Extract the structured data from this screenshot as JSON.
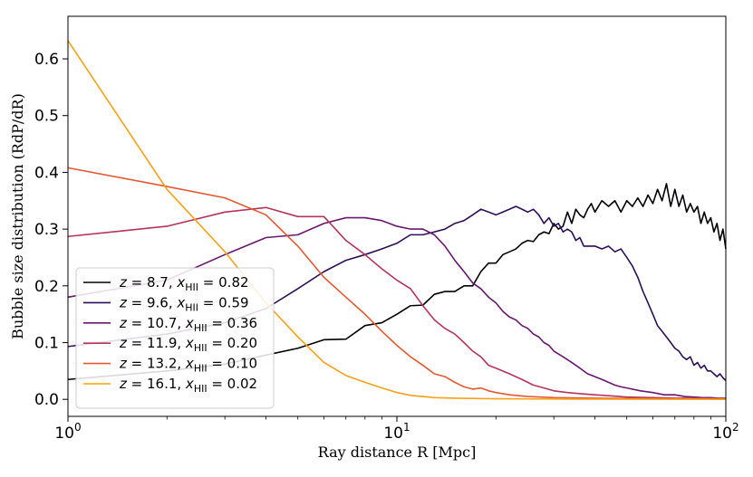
{
  "chart_data": {
    "type": "line",
    "title": "",
    "xlabel": "Ray distance R [Mpc]",
    "ylabel": "Bubble size distribution (RdP/dR)",
    "xscale": "log",
    "xlim": [
      1,
      100
    ],
    "ylim": [
      -0.03,
      0.675
    ],
    "x_ticks": [
      {
        "value": 1,
        "base": "10",
        "exp": "0"
      },
      {
        "value": 10,
        "base": "10",
        "exp": "1"
      },
      {
        "value": 100,
        "base": "10",
        "exp": "2"
      }
    ],
    "y_ticks": [
      {
        "value": 0.0,
        "label": "0.0"
      },
      {
        "value": 0.1,
        "label": "0.1"
      },
      {
        "value": 0.2,
        "label": "0.2"
      },
      {
        "value": 0.3,
        "label": "0.3"
      },
      {
        "value": 0.4,
        "label": "0.4"
      },
      {
        "value": 0.5,
        "label": "0.5"
      },
      {
        "value": 0.6,
        "label": "0.6"
      }
    ],
    "legend_position": "lower-left",
    "series": [
      {
        "name": "z = 8.7, x_HII = 0.82",
        "z": "8.7",
        "xhii": "0.82",
        "color": "#000004",
        "points": [
          [
            1,
            0.035
          ],
          [
            2,
            0.05
          ],
          [
            3,
            0.062
          ],
          [
            4,
            0.078
          ],
          [
            5,
            0.09
          ],
          [
            6,
            0.105
          ],
          [
            7,
            0.106
          ],
          [
            8,
            0.13
          ],
          [
            9,
            0.135
          ],
          [
            10,
            0.15
          ],
          [
            11,
            0.165
          ],
          [
            12,
            0.166
          ],
          [
            13,
            0.185
          ],
          [
            14,
            0.19
          ],
          [
            15,
            0.19
          ],
          [
            16,
            0.2
          ],
          [
            17,
            0.2
          ],
          [
            18,
            0.225
          ],
          [
            19,
            0.24
          ],
          [
            20,
            0.24
          ],
          [
            21,
            0.255
          ],
          [
            22,
            0.26
          ],
          [
            23,
            0.265
          ],
          [
            24,
            0.275
          ],
          [
            25,
            0.28
          ],
          [
            26,
            0.278
          ],
          [
            27,
            0.29
          ],
          [
            28,
            0.295
          ],
          [
            29,
            0.292
          ],
          [
            30,
            0.31
          ],
          [
            31,
            0.3
          ],
          [
            32,
            0.305
          ],
          [
            33,
            0.33
          ],
          [
            34,
            0.31
          ],
          [
            35,
            0.335
          ],
          [
            36,
            0.325
          ],
          [
            37,
            0.32
          ],
          [
            38,
            0.335
          ],
          [
            39,
            0.345
          ],
          [
            40,
            0.33
          ],
          [
            42,
            0.35
          ],
          [
            44,
            0.34
          ],
          [
            46,
            0.35
          ],
          [
            48,
            0.33
          ],
          [
            50,
            0.35
          ],
          [
            52,
            0.34
          ],
          [
            54,
            0.355
          ],
          [
            56,
            0.34
          ],
          [
            58,
            0.36
          ],
          [
            60,
            0.345
          ],
          [
            62,
            0.37
          ],
          [
            64,
            0.35
          ],
          [
            66,
            0.38
          ],
          [
            68,
            0.34
          ],
          [
            70,
            0.37
          ],
          [
            72,
            0.34
          ],
          [
            74,
            0.36
          ],
          [
            76,
            0.33
          ],
          [
            78,
            0.345
          ],
          [
            80,
            0.33
          ],
          [
            82,
            0.34
          ],
          [
            84,
            0.31
          ],
          [
            86,
            0.33
          ],
          [
            88,
            0.31
          ],
          [
            90,
            0.32
          ],
          [
            92,
            0.295
          ],
          [
            94,
            0.31
          ],
          [
            96,
            0.28
          ],
          [
            98,
            0.3
          ],
          [
            100,
            0.265
          ]
        ]
      },
      {
        "name": "z = 9.6, x_HII = 0.59",
        "z": "9.6",
        "xhii": "0.59",
        "color": "#2e0f57",
        "points": [
          [
            1,
            0.093
          ],
          [
            2,
            0.115
          ],
          [
            3,
            0.135
          ],
          [
            4,
            0.16
          ],
          [
            5,
            0.195
          ],
          [
            6,
            0.225
          ],
          [
            7,
            0.245
          ],
          [
            8,
            0.255
          ],
          [
            9,
            0.265
          ],
          [
            10,
            0.275
          ],
          [
            11,
            0.29
          ],
          [
            12,
            0.29
          ],
          [
            13,
            0.295
          ],
          [
            14,
            0.3
          ],
          [
            15,
            0.31
          ],
          [
            16,
            0.315
          ],
          [
            17,
            0.325
          ],
          [
            18,
            0.335
          ],
          [
            19,
            0.33
          ],
          [
            20,
            0.325
          ],
          [
            21,
            0.33
          ],
          [
            22,
            0.335
          ],
          [
            23,
            0.34
          ],
          [
            24,
            0.335
          ],
          [
            25,
            0.33
          ],
          [
            26,
            0.335
          ],
          [
            27,
            0.325
          ],
          [
            28,
            0.31
          ],
          [
            29,
            0.32
          ],
          [
            30,
            0.305
          ],
          [
            31,
            0.31
          ],
          [
            32,
            0.295
          ],
          [
            33,
            0.3
          ],
          [
            34,
            0.295
          ],
          [
            35,
            0.28
          ],
          [
            36,
            0.285
          ],
          [
            37,
            0.27
          ],
          [
            38,
            0.27
          ],
          [
            39,
            0.27
          ],
          [
            40,
            0.27
          ],
          [
            42,
            0.265
          ],
          [
            44,
            0.27
          ],
          [
            46,
            0.26
          ],
          [
            48,
            0.265
          ],
          [
            50,
            0.25
          ],
          [
            52,
            0.235
          ],
          [
            54,
            0.215
          ],
          [
            56,
            0.19
          ],
          [
            58,
            0.17
          ],
          [
            60,
            0.15
          ],
          [
            62,
            0.13
          ],
          [
            64,
            0.12
          ],
          [
            66,
            0.11
          ],
          [
            68,
            0.1
          ],
          [
            70,
            0.09
          ],
          [
            72,
            0.085
          ],
          [
            74,
            0.075
          ],
          [
            76,
            0.07
          ],
          [
            78,
            0.075
          ],
          [
            80,
            0.06
          ],
          [
            82,
            0.065
          ],
          [
            84,
            0.055
          ],
          [
            86,
            0.06
          ],
          [
            88,
            0.05
          ],
          [
            90,
            0.05
          ],
          [
            92,
            0.045
          ],
          [
            94,
            0.04
          ],
          [
            96,
            0.045
          ],
          [
            98,
            0.038
          ],
          [
            100,
            0.033
          ]
        ]
      },
      {
        "name": "z = 10.7, x_HII = 0.36",
        "z": "10.7",
        "xhii": "0.36",
        "color": "#6a176e",
        "points": [
          [
            1,
            0.18
          ],
          [
            2,
            0.21
          ],
          [
            3,
            0.255
          ],
          [
            4,
            0.285
          ],
          [
            5,
            0.29
          ],
          [
            6,
            0.31
          ],
          [
            7,
            0.32
          ],
          [
            8,
            0.32
          ],
          [
            9,
            0.315
          ],
          [
            10,
            0.305
          ],
          [
            11,
            0.3
          ],
          [
            12,
            0.3
          ],
          [
            13,
            0.29
          ],
          [
            14,
            0.27
          ],
          [
            15,
            0.245
          ],
          [
            16,
            0.225
          ],
          [
            17,
            0.205
          ],
          [
            18,
            0.195
          ],
          [
            19,
            0.18
          ],
          [
            20,
            0.17
          ],
          [
            21,
            0.155
          ],
          [
            22,
            0.145
          ],
          [
            23,
            0.14
          ],
          [
            24,
            0.13
          ],
          [
            25,
            0.125
          ],
          [
            26,
            0.115
          ],
          [
            27,
            0.11
          ],
          [
            28,
            0.1
          ],
          [
            29,
            0.095
          ],
          [
            30,
            0.085
          ],
          [
            32,
            0.075
          ],
          [
            34,
            0.065
          ],
          [
            36,
            0.055
          ],
          [
            38,
            0.045
          ],
          [
            40,
            0.04
          ],
          [
            42,
            0.035
          ],
          [
            44,
            0.03
          ],
          [
            46,
            0.025
          ],
          [
            48,
            0.022
          ],
          [
            50,
            0.02
          ],
          [
            55,
            0.015
          ],
          [
            60,
            0.012
          ],
          [
            65,
            0.008
          ],
          [
            70,
            0.008
          ],
          [
            75,
            0.005
          ],
          [
            80,
            0.004
          ],
          [
            85,
            0.003
          ],
          [
            90,
            0.003
          ],
          [
            95,
            0.002
          ],
          [
            100,
            0.002
          ]
        ]
      },
      {
        "name": "z = 11.9, x_HII = 0.20",
        "z": "11.9",
        "xhii": "0.20",
        "color": "#b63458",
        "points": [
          [
            1,
            0.287
          ],
          [
            2,
            0.305
          ],
          [
            3,
            0.33
          ],
          [
            4,
            0.338
          ],
          [
            5,
            0.322
          ],
          [
            6,
            0.322
          ],
          [
            7,
            0.28
          ],
          [
            8,
            0.255
          ],
          [
            9,
            0.23
          ],
          [
            10,
            0.21
          ],
          [
            11,
            0.195
          ],
          [
            12,
            0.165
          ],
          [
            13,
            0.14
          ],
          [
            14,
            0.125
          ],
          [
            15,
            0.115
          ],
          [
            16,
            0.1
          ],
          [
            17,
            0.085
          ],
          [
            18,
            0.075
          ],
          [
            19,
            0.06
          ],
          [
            20,
            0.055
          ],
          [
            22,
            0.045
          ],
          [
            24,
            0.035
          ],
          [
            26,
            0.025
          ],
          [
            28,
            0.02
          ],
          [
            30,
            0.015
          ],
          [
            33,
            0.012
          ],
          [
            36,
            0.01
          ],
          [
            40,
            0.008
          ],
          [
            45,
            0.006
          ],
          [
            50,
            0.004
          ],
          [
            60,
            0.003
          ],
          [
            70,
            0.002
          ],
          [
            80,
            0.002
          ],
          [
            100,
            0.001
          ]
        ]
      },
      {
        "name": "z = 13.2, x_HII = 0.10",
        "z": "13.2",
        "xhii": "0.10",
        "color": "#e35932",
        "points": [
          [
            1,
            0.408
          ],
          [
            2,
            0.375
          ],
          [
            3,
            0.355
          ],
          [
            4,
            0.325
          ],
          [
            5,
            0.27
          ],
          [
            6,
            0.215
          ],
          [
            7,
            0.18
          ],
          [
            8,
            0.15
          ],
          [
            9,
            0.12
          ],
          [
            10,
            0.095
          ],
          [
            11,
            0.075
          ],
          [
            12,
            0.06
          ],
          [
            13,
            0.045
          ],
          [
            14,
            0.04
          ],
          [
            15,
            0.03
          ],
          [
            16,
            0.022
          ],
          [
            17,
            0.018
          ],
          [
            18,
            0.02
          ],
          [
            19,
            0.015
          ],
          [
            20,
            0.012
          ],
          [
            22,
            0.008
          ],
          [
            25,
            0.005
          ],
          [
            30,
            0.003
          ],
          [
            40,
            0.002
          ],
          [
            60,
            0.001
          ],
          [
            100,
            0.001
          ]
        ]
      },
      {
        "name": "z = 16.1, x_HII = 0.02",
        "z": "16.1",
        "xhii": "0.02",
        "color": "#f8a017",
        "points": [
          [
            1,
            0.632
          ],
          [
            2,
            0.37
          ],
          [
            3,
            0.26
          ],
          [
            4,
            0.17
          ],
          [
            5,
            0.11
          ],
          [
            6,
            0.065
          ],
          [
            7,
            0.042
          ],
          [
            8,
            0.03
          ],
          [
            9,
            0.02
          ],
          [
            10,
            0.012
          ],
          [
            11,
            0.007
          ],
          [
            12,
            0.005
          ],
          [
            13,
            0.003
          ],
          [
            15,
            0.002
          ],
          [
            20,
            0.001
          ],
          [
            30,
            0.0005
          ],
          [
            100,
            0.0
          ]
        ]
      }
    ]
  }
}
